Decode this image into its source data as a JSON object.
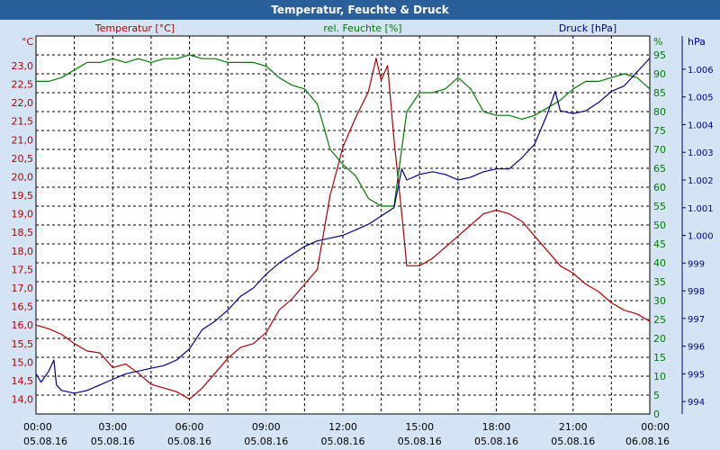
{
  "window": {
    "title": "Temperatur, Feuchte & Druck"
  },
  "chart_data": {
    "type": "line",
    "title": "Temperatur, Feuchte & Druck",
    "x_ticks": [
      {
        "time": "00:00",
        "date": "05.08.16"
      },
      {
        "time": "03:00",
        "date": "05.08.16"
      },
      {
        "time": "06:00",
        "date": "05.08.16"
      },
      {
        "time": "09:00",
        "date": "05.08.16"
      },
      {
        "time": "12:00",
        "date": "05.08.16"
      },
      {
        "time": "15:00",
        "date": "05.08.16"
      },
      {
        "time": "18:00",
        "date": "05.08.16"
      },
      {
        "time": "21:00",
        "date": "05.08.16"
      },
      {
        "time": "00:00",
        "date": "06.08.16"
      }
    ],
    "xlim_hours": [
      0,
      24
    ],
    "grid": true,
    "axes": {
      "temp": {
        "label": "Temperatur [°C]",
        "unit": "°C",
        "side": "left",
        "color": "#b00000",
        "ylim": [
          13.6,
          23.8
        ],
        "ticks": [
          "14,0",
          "14,5",
          "15,0",
          "15,5",
          "16,0",
          "16,5",
          "17,0",
          "17,5",
          "18,0",
          "18,5",
          "19,0",
          "19,5",
          "20,0",
          "20,5",
          "21,0",
          "21,5",
          "22,0",
          "22,5",
          "23,0"
        ],
        "tick_values": [
          14.0,
          14.5,
          15.0,
          15.5,
          16.0,
          16.5,
          17.0,
          17.5,
          18.0,
          18.5,
          19.0,
          19.5,
          20.0,
          20.5,
          21.0,
          21.5,
          22.0,
          22.5,
          23.0
        ]
      },
      "hum": {
        "label": "rel. Feuchte [%]",
        "unit": "%",
        "side": "right",
        "color": "#007a00",
        "ylim": [
          0,
          100
        ],
        "ticks": [
          "0",
          "5",
          "10",
          "15",
          "20",
          "25",
          "30",
          "35",
          "40",
          "45",
          "50",
          "55",
          "60",
          "65",
          "70",
          "75",
          "80",
          "85",
          "90",
          "95"
        ],
        "tick_values": [
          0,
          5,
          10,
          15,
          20,
          25,
          30,
          35,
          40,
          45,
          50,
          55,
          60,
          65,
          70,
          75,
          80,
          85,
          90,
          95
        ]
      },
      "press": {
        "label": "Druck [hPa]",
        "unit": "hPa",
        "side": "right",
        "color": "#00008b",
        "ylim": [
          993.55,
          1007.2
        ],
        "ticks": [
          "994",
          "995",
          "996",
          "997",
          "998",
          "999",
          "1.000",
          "1.001",
          "1.002",
          "1.003",
          "1.004",
          "1.005",
          "1.006"
        ],
        "tick_values": [
          994,
          995,
          996,
          997,
          998,
          999,
          1000,
          1001,
          1002,
          1003,
          1004,
          1005,
          1006
        ]
      }
    },
    "series": [
      {
        "name": "Temperatur [°C]",
        "axis": "temp",
        "color": "#b00000",
        "points": [
          [
            0.0,
            16.0
          ],
          [
            0.5,
            15.9
          ],
          [
            1.0,
            15.75
          ],
          [
            1.5,
            15.5
          ],
          [
            2.0,
            15.3
          ],
          [
            2.5,
            15.25
          ],
          [
            3.0,
            14.85
          ],
          [
            3.5,
            14.95
          ],
          [
            4.0,
            14.7
          ],
          [
            4.5,
            14.4
          ],
          [
            5.0,
            14.3
          ],
          [
            5.5,
            14.2
          ],
          [
            6.0,
            14.0
          ],
          [
            6.5,
            14.3
          ],
          [
            7.0,
            14.7
          ],
          [
            7.5,
            15.1
          ],
          [
            8.0,
            15.4
          ],
          [
            8.5,
            15.5
          ],
          [
            9.0,
            15.8
          ],
          [
            9.5,
            16.4
          ],
          [
            10.0,
            16.7
          ],
          [
            10.5,
            17.1
          ],
          [
            11.0,
            17.5
          ],
          [
            11.25,
            18.5
          ],
          [
            11.5,
            19.5
          ],
          [
            12.0,
            20.8
          ],
          [
            12.5,
            21.6
          ],
          [
            13.0,
            22.3
          ],
          [
            13.3,
            23.2
          ],
          [
            13.5,
            22.6
          ],
          [
            13.75,
            23.0
          ],
          [
            14.0,
            21.0
          ],
          [
            14.3,
            19.0
          ],
          [
            14.5,
            17.6
          ],
          [
            15.0,
            17.6
          ],
          [
            15.5,
            17.8
          ],
          [
            16.0,
            18.1
          ],
          [
            16.5,
            18.4
          ],
          [
            17.0,
            18.7
          ],
          [
            17.5,
            19.0
          ],
          [
            18.0,
            19.1
          ],
          [
            18.5,
            19.0
          ],
          [
            19.0,
            18.8
          ],
          [
            19.5,
            18.4
          ],
          [
            20.0,
            18.0
          ],
          [
            20.5,
            17.6
          ],
          [
            21.0,
            17.4
          ],
          [
            21.5,
            17.1
          ],
          [
            22.0,
            16.9
          ],
          [
            22.5,
            16.6
          ],
          [
            23.0,
            16.4
          ],
          [
            23.5,
            16.3
          ],
          [
            24.0,
            16.1
          ]
        ]
      },
      {
        "name": "rel. Feuchte [%]",
        "axis": "hum",
        "color": "#007a00",
        "points": [
          [
            0.0,
            88
          ],
          [
            0.5,
            88
          ],
          [
            1.0,
            89
          ],
          [
            1.5,
            91
          ],
          [
            2.0,
            93
          ],
          [
            2.5,
            93
          ],
          [
            3.0,
            94
          ],
          [
            3.5,
            93
          ],
          [
            4.0,
            94
          ],
          [
            4.5,
            93
          ],
          [
            5.0,
            94
          ],
          [
            5.5,
            94
          ],
          [
            6.0,
            95
          ],
          [
            6.5,
            94
          ],
          [
            7.0,
            94
          ],
          [
            7.5,
            93
          ],
          [
            8.0,
            93
          ],
          [
            8.5,
            93
          ],
          [
            9.0,
            92
          ],
          [
            9.5,
            89
          ],
          [
            10.0,
            87
          ],
          [
            10.5,
            86
          ],
          [
            11.0,
            82
          ],
          [
            11.5,
            70
          ],
          [
            12.0,
            66
          ],
          [
            12.5,
            63
          ],
          [
            13.0,
            57
          ],
          [
            13.5,
            55
          ],
          [
            14.0,
            55
          ],
          [
            14.5,
            80
          ],
          [
            15.0,
            85
          ],
          [
            15.5,
            85
          ],
          [
            16.0,
            86
          ],
          [
            16.5,
            89
          ],
          [
            17.0,
            86
          ],
          [
            17.5,
            80
          ],
          [
            18.0,
            79
          ],
          [
            18.5,
            79
          ],
          [
            19.0,
            78
          ],
          [
            19.5,
            79
          ],
          [
            20.0,
            81
          ],
          [
            20.5,
            83
          ],
          [
            21.0,
            86
          ],
          [
            21.5,
            88
          ],
          [
            22.0,
            88
          ],
          [
            22.5,
            89
          ],
          [
            23.0,
            90
          ],
          [
            23.5,
            89
          ],
          [
            24.0,
            86
          ]
        ]
      },
      {
        "name": "Druck [hPa]",
        "axis": "press",
        "color": "#00008b",
        "points": [
          [
            0.0,
            995.0
          ],
          [
            0.2,
            994.7
          ],
          [
            0.5,
            995.1
          ],
          [
            0.7,
            995.5
          ],
          [
            0.8,
            994.6
          ],
          [
            1.0,
            994.4
          ],
          [
            1.5,
            994.3
          ],
          [
            2.0,
            994.4
          ],
          [
            2.5,
            994.6
          ],
          [
            3.0,
            994.8
          ],
          [
            3.5,
            995.0
          ],
          [
            4.0,
            995.1
          ],
          [
            4.5,
            995.2
          ],
          [
            5.0,
            995.3
          ],
          [
            5.5,
            995.5
          ],
          [
            6.0,
            995.9
          ],
          [
            6.5,
            996.6
          ],
          [
            7.0,
            996.9
          ],
          [
            7.5,
            997.3
          ],
          [
            8.0,
            997.8
          ],
          [
            8.5,
            998.1
          ],
          [
            9.0,
            998.6
          ],
          [
            9.5,
            999.0
          ],
          [
            10.0,
            999.3
          ],
          [
            10.5,
            999.6
          ],
          [
            11.0,
            999.8
          ],
          [
            11.5,
            999.9
          ],
          [
            12.0,
            1000.0
          ],
          [
            12.5,
            1000.2
          ],
          [
            13.0,
            1000.4
          ],
          [
            13.5,
            1000.7
          ],
          [
            14.0,
            1001.0
          ],
          [
            14.3,
            1002.4
          ],
          [
            14.5,
            1002.0
          ],
          [
            15.0,
            1002.2
          ],
          [
            15.5,
            1002.3
          ],
          [
            16.0,
            1002.2
          ],
          [
            16.5,
            1002.0
          ],
          [
            17.0,
            1002.1
          ],
          [
            17.5,
            1002.3
          ],
          [
            18.0,
            1002.4
          ],
          [
            18.5,
            1002.4
          ],
          [
            19.0,
            1002.8
          ],
          [
            19.5,
            1003.3
          ],
          [
            20.0,
            1004.4
          ],
          [
            20.3,
            1005.2
          ],
          [
            20.5,
            1004.5
          ],
          [
            21.0,
            1004.4
          ],
          [
            21.5,
            1004.5
          ],
          [
            22.0,
            1004.8
          ],
          [
            22.5,
            1005.2
          ],
          [
            23.0,
            1005.4
          ],
          [
            23.5,
            1005.9
          ],
          [
            24.0,
            1006.4
          ]
        ]
      }
    ]
  }
}
